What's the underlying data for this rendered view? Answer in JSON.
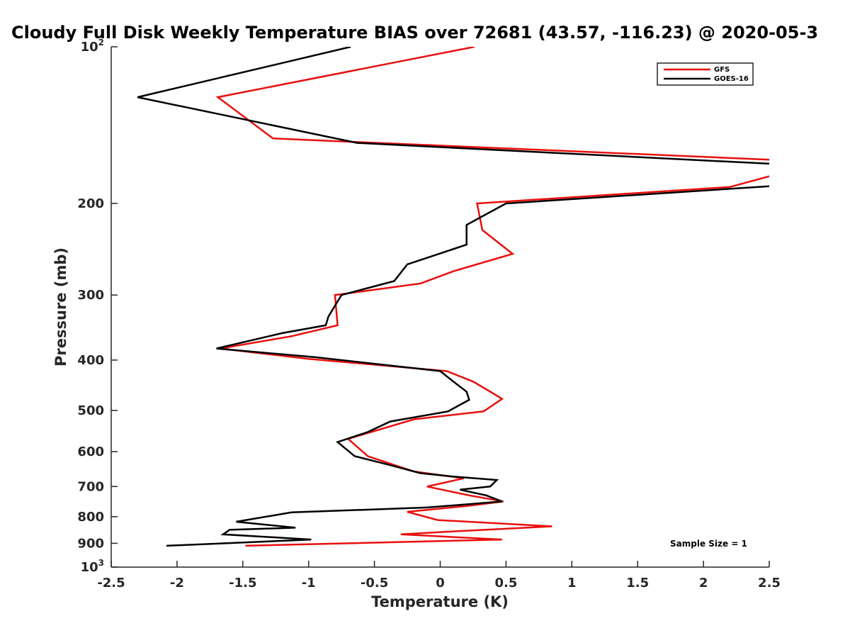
{
  "chart_data": {
    "type": "line",
    "title": "Cloudy Full Disk Weekly Temperature BIAS over 72681 (43.57, -116.23) @ 2020-05-3",
    "xlabel": "Temperature (K)",
    "ylabel": "Pressure (mb)",
    "xlim": [
      -2.5,
      2.5
    ],
    "ylim": [
      100,
      1000
    ],
    "yscale": "log",
    "yreversed": true,
    "x_ticks": [
      {
        "value": -2.5,
        "label": "-2.5"
      },
      {
        "value": -2,
        "label": "-2"
      },
      {
        "value": -1.5,
        "label": "-1.5"
      },
      {
        "value": -1,
        "label": "-1"
      },
      {
        "value": -0.5,
        "label": "-0.5"
      },
      {
        "value": 0,
        "label": "0"
      },
      {
        "value": 0.5,
        "label": "0.5"
      },
      {
        "value": 1,
        "label": "1"
      },
      {
        "value": 1.5,
        "label": "1.5"
      },
      {
        "value": 2,
        "label": "2"
      },
      {
        "value": 2.5,
        "label": "2.5"
      }
    ],
    "y_ticks": [
      {
        "value": 100,
        "base": "10",
        "exp": "2"
      },
      {
        "value": 200,
        "base": "200",
        "exp": ""
      },
      {
        "value": 300,
        "base": "300",
        "exp": ""
      },
      {
        "value": 400,
        "base": "400",
        "exp": ""
      },
      {
        "value": 500,
        "base": "500",
        "exp": ""
      },
      {
        "value": 600,
        "base": "600",
        "exp": ""
      },
      {
        "value": 700,
        "base": "700",
        "exp": ""
      },
      {
        "value": 800,
        "base": "800",
        "exp": ""
      },
      {
        "value": 900,
        "base": "900",
        "exp": ""
      },
      {
        "value": 1000,
        "base": "10",
        "exp": "3"
      }
    ],
    "grid": false,
    "legend_position": "top-right",
    "series": [
      {
        "name": "GFS",
        "color": "#e8100f",
        "points": [
          [
            0.26,
            100
          ],
          [
            -1.69,
            125
          ],
          [
            -1.27,
            150
          ],
          [
            2.55,
            165
          ],
          [
            2.55,
            176
          ],
          [
            2.2,
            186
          ],
          [
            0.28,
            200
          ],
          [
            0.32,
            225
          ],
          [
            0.55,
            250
          ],
          [
            0.1,
            270
          ],
          [
            -0.15,
            285
          ],
          [
            -0.8,
            300
          ],
          [
            -0.78,
            343
          ],
          [
            -1.13,
            360
          ],
          [
            -1.67,
            380
          ],
          [
            -1.0,
            398
          ],
          [
            0.05,
            420
          ],
          [
            0.25,
            440
          ],
          [
            0.38,
            460
          ],
          [
            0.47,
            475
          ],
          [
            0.33,
            502
          ],
          [
            -0.2,
            520
          ],
          [
            -0.7,
            567
          ],
          [
            -0.55,
            612
          ],
          [
            -0.2,
            655
          ],
          [
            0.18,
            675
          ],
          [
            -0.1,
            700
          ],
          [
            0.22,
            728
          ],
          [
            0.48,
            748
          ],
          [
            0.22,
            762
          ],
          [
            -0.25,
            783
          ],
          [
            -0.02,
            812
          ],
          [
            0.85,
            835
          ],
          [
            0.05,
            855
          ],
          [
            -0.3,
            865
          ],
          [
            0.47,
            885
          ],
          [
            -1.48,
            910
          ]
        ]
      },
      {
        "name": "GOES-16",
        "color": "#000000",
        "points": [
          [
            -0.68,
            100
          ],
          [
            -2.3,
            125
          ],
          [
            -0.63,
            153
          ],
          [
            2.55,
            168
          ],
          [
            2.55,
            185
          ],
          [
            0.5,
            200
          ],
          [
            0.2,
            220
          ],
          [
            0.2,
            240
          ],
          [
            -0.25,
            262
          ],
          [
            -0.35,
            282
          ],
          [
            -0.75,
            300
          ],
          [
            -0.85,
            330
          ],
          [
            -0.87,
            343
          ],
          [
            -1.2,
            355
          ],
          [
            -1.7,
            380
          ],
          [
            -0.95,
            395
          ],
          [
            0.0,
            420
          ],
          [
            0.1,
            440
          ],
          [
            0.2,
            460
          ],
          [
            0.22,
            477
          ],
          [
            0.06,
            502
          ],
          [
            -0.38,
            525
          ],
          [
            -0.55,
            550
          ],
          [
            -0.78,
            575
          ],
          [
            -0.65,
            612
          ],
          [
            -0.4,
            635
          ],
          [
            -0.15,
            660
          ],
          [
            0.1,
            670
          ],
          [
            0.43,
            680
          ],
          [
            0.38,
            700
          ],
          [
            0.15,
            710
          ],
          [
            0.35,
            728
          ],
          [
            0.47,
            748
          ],
          [
            -0.1,
            768
          ],
          [
            -1.13,
            785
          ],
          [
            -1.55,
            818
          ],
          [
            -1.1,
            840
          ],
          [
            -1.6,
            848
          ],
          [
            -1.65,
            865
          ],
          [
            -0.98,
            885
          ],
          [
            -2.08,
            910
          ]
        ]
      }
    ],
    "annotation": "Sample Size = 1"
  }
}
